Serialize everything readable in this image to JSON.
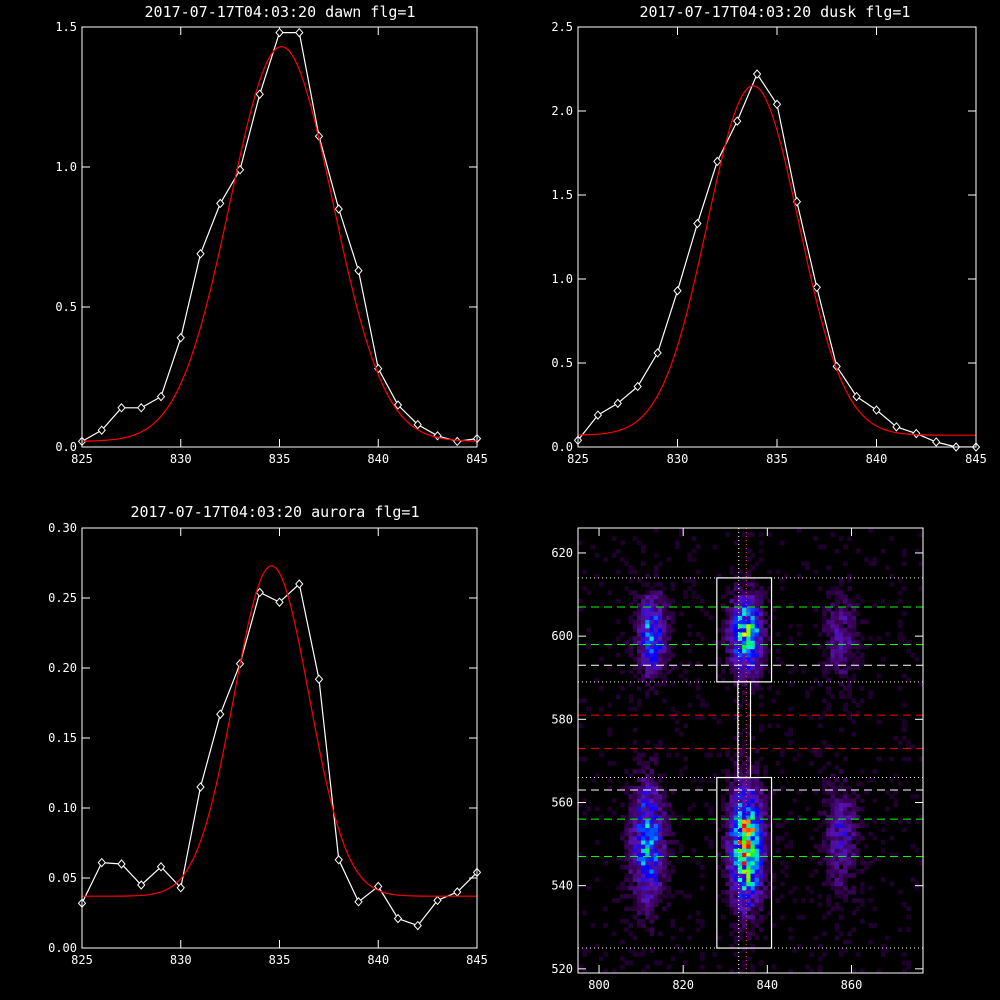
{
  "chart_data": [
    {
      "id": "dawn",
      "type": "line",
      "title": "2017-07-17T04:03:20 dawn flg=1",
      "xlim": [
        825,
        845
      ],
      "ylim": [
        0,
        1.5
      ],
      "xticks": [
        825,
        830,
        835,
        840,
        845
      ],
      "yticks": [
        0.0,
        0.5,
        1.0,
        1.5
      ],
      "ytick_labels": [
        "0.0",
        "0.5",
        "1.0",
        "1.5"
      ],
      "series": [
        {
          "color": "#ffffff",
          "marker": "diamond",
          "x": [
            825,
            826,
            827,
            828,
            829,
            830,
            831,
            832,
            833,
            834,
            835,
            836,
            837,
            838,
            839,
            840,
            841,
            842,
            843,
            844,
            845
          ],
          "y": [
            0.02,
            0.06,
            0.14,
            0.14,
            0.18,
            0.39,
            0.69,
            0.87,
            0.99,
            1.26,
            1.48,
            1.48,
            1.11,
            0.85,
            0.63,
            0.28,
            0.15,
            0.08,
            0.04,
            0.02,
            0.03
          ]
        },
        {
          "color": "#ff0000",
          "fit": "gaussian",
          "amplitude": 1.41,
          "center": 835.1,
          "sigma": 2.6,
          "offset": 0.02
        }
      ]
    },
    {
      "id": "dusk",
      "type": "line",
      "title": "2017-07-17T04:03:20 dusk flg=1",
      "xlim": [
        825,
        845
      ],
      "ylim": [
        0,
        2.5
      ],
      "xticks": [
        825,
        830,
        835,
        840,
        845
      ],
      "yticks": [
        0.0,
        0.5,
        1.0,
        1.5,
        2.0,
        2.5
      ],
      "ytick_labels": [
        "0.0",
        "0.5",
        "1.0",
        "1.5",
        "2.0",
        "2.5"
      ],
      "series": [
        {
          "color": "#ffffff",
          "marker": "diamond",
          "x": [
            825,
            826,
            827,
            828,
            829,
            830,
            831,
            832,
            833,
            834,
            835,
            836,
            837,
            838,
            839,
            840,
            841,
            842,
            843,
            844,
            845
          ],
          "y": [
            0.04,
            0.19,
            0.26,
            0.36,
            0.56,
            0.93,
            1.33,
            1.7,
            1.94,
            2.22,
            2.04,
            1.46,
            0.95,
            0.48,
            0.3,
            0.22,
            0.12,
            0.08,
            0.03,
            0.0,
            0.0
          ]
        },
        {
          "color": "#ff0000",
          "fit": "gaussian",
          "amplitude": 2.08,
          "center": 833.8,
          "sigma": 2.3,
          "offset": 0.07
        }
      ]
    },
    {
      "id": "aurora",
      "type": "line",
      "title": "2017-07-17T04:03:20 aurora flg=1",
      "xlim": [
        825,
        845
      ],
      "ylim": [
        0,
        0.3
      ],
      "xticks": [
        825,
        830,
        835,
        840,
        845
      ],
      "yticks": [
        0.0,
        0.05,
        0.1,
        0.15,
        0.2,
        0.25,
        0.3
      ],
      "ytick_labels": [
        "0.00",
        "0.05",
        "0.10",
        "0.15",
        "0.20",
        "0.25",
        "0.30"
      ],
      "series": [
        {
          "color": "#ffffff",
          "marker": "diamond",
          "x": [
            825,
            826,
            827,
            828,
            829,
            830,
            831,
            832,
            833,
            834,
            835,
            836,
            837,
            838,
            839,
            840,
            841,
            842,
            843,
            844,
            845
          ],
          "y": [
            0.032,
            0.061,
            0.06,
            0.045,
            0.058,
            0.043,
            0.115,
            0.167,
            0.203,
            0.254,
            0.247,
            0.26,
            0.192,
            0.063,
            0.033,
            0.044,
            0.021,
            0.016,
            0.034,
            0.04,
            0.054
          ]
        },
        {
          "color": "#ff0000",
          "fit": "gaussian",
          "amplitude": 0.236,
          "center": 834.6,
          "sigma": 1.9,
          "offset": 0.037
        }
      ]
    },
    {
      "id": "image",
      "type": "heatmap",
      "xlim": [
        795,
        877
      ],
      "ylim": [
        519,
        626
      ],
      "xticks": [
        800,
        820,
        840,
        860
      ],
      "yticks": [
        520,
        540,
        560,
        580,
        600,
        620
      ],
      "colormap": "rainbow",
      "blobs": [
        {
          "x": 812,
          "y": 600,
          "sx": 2.2,
          "sy": 6,
          "amp": 0.5
        },
        {
          "x": 811,
          "y": 550,
          "sx": 2.5,
          "sy": 9,
          "amp": 0.55
        },
        {
          "x": 834.5,
          "y": 600,
          "sx": 2.4,
          "sy": 6,
          "amp": 0.7
        },
        {
          "x": 834.5,
          "y": 549,
          "sx": 2.5,
          "sy": 9,
          "amp": 0.85
        },
        {
          "x": 857,
          "y": 600,
          "sx": 2.5,
          "sy": 7,
          "amp": 0.2
        },
        {
          "x": 857,
          "y": 551,
          "sx": 2.5,
          "sy": 8,
          "amp": 0.25
        }
      ],
      "boxes": [
        {
          "x": [
            828,
            841
          ],
          "y": [
            589,
            614
          ]
        },
        {
          "x": [
            828,
            841
          ],
          "y": [
            525,
            566
          ]
        },
        {
          "x": [
            833,
            836
          ],
          "y": [
            566,
            589
          ]
        }
      ],
      "vlines": [
        {
          "x": 833.2,
          "color": "#ffffff",
          "style": "dotted"
        },
        {
          "x": 835.0,
          "color": "#ff4040",
          "style": "dotted"
        }
      ],
      "hlines": [
        {
          "y": 614,
          "color": "#ffffff",
          "style": "dotted"
        },
        {
          "y": 607,
          "color": "#00ff00",
          "style": "dashed"
        },
        {
          "y": 598,
          "color": "#00ff00",
          "style": "dashed"
        },
        {
          "y": 593,
          "color": "#ffffff",
          "style": "dashed"
        },
        {
          "y": 589,
          "color": "#ffffff",
          "style": "dotted"
        },
        {
          "y": 581,
          "color": "#ff0000",
          "style": "dashed"
        },
        {
          "y": 573,
          "color": "#ff0000",
          "style": "dashed"
        },
        {
          "y": 566,
          "color": "#ffffff",
          "style": "dotted"
        },
        {
          "y": 563,
          "color": "#ffffff",
          "style": "dashed"
        },
        {
          "y": 556,
          "color": "#00ff00",
          "style": "dashed"
        },
        {
          "y": 547,
          "color": "#00ff00",
          "style": "dashed"
        },
        {
          "y": 525,
          "color": "#ffffff",
          "style": "dotted"
        }
      ]
    }
  ]
}
